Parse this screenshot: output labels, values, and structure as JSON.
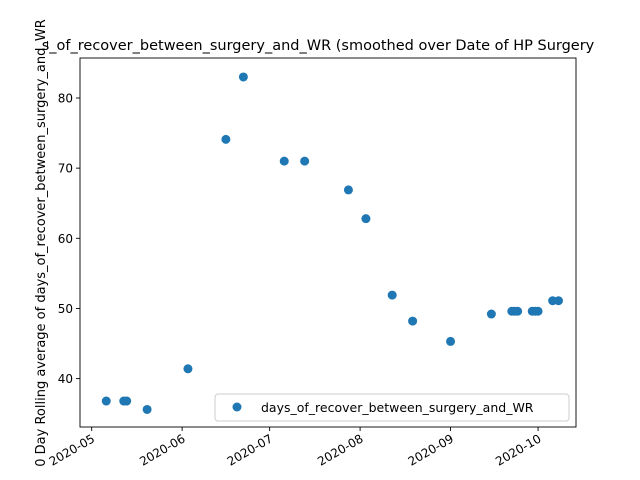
{
  "chart_data": {
    "type": "scatter",
    "title": "s_of_recover_between_surgery_and_WR (smoothed over Date of HP Surgery",
    "xlabel": "",
    "ylabel": "0 Day Rolling average of days_of_recover_between_surgery_and_WR",
    "x_type": "date",
    "xlim": [
      "2020-04-27",
      "2020-10-14"
    ],
    "ylim": [
      33.1,
      85.7
    ],
    "x_ticks": [
      "2020-05",
      "2020-06",
      "2020-07",
      "2020-08",
      "2020-09",
      "2020-10"
    ],
    "y_ticks": [
      40,
      50,
      60,
      70,
      80
    ],
    "grid": false,
    "legend_position": "lower-right",
    "series": [
      {
        "name": "days_of_recover_between_surgery_and_WR",
        "color": "#1f77b4",
        "marker": "circle",
        "points": [
          {
            "x": "2020-05-06",
            "y": 36.8
          },
          {
            "x": "2020-05-12",
            "y": 36.8
          },
          {
            "x": "2020-05-13",
            "y": 36.8
          },
          {
            "x": "2020-05-20",
            "y": 35.6
          },
          {
            "x": "2020-06-03",
            "y": 41.4
          },
          {
            "x": "2020-06-16",
            "y": 74.1
          },
          {
            "x": "2020-06-22",
            "y": 83.0
          },
          {
            "x": "2020-07-06",
            "y": 71.0
          },
          {
            "x": "2020-07-13",
            "y": 71.0
          },
          {
            "x": "2020-07-28",
            "y": 66.9
          },
          {
            "x": "2020-08-03",
            "y": 62.8
          },
          {
            "x": "2020-08-12",
            "y": 51.9
          },
          {
            "x": "2020-08-19",
            "y": 48.2
          },
          {
            "x": "2020-09-01",
            "y": 45.3
          },
          {
            "x": "2020-09-15",
            "y": 49.2
          },
          {
            "x": "2020-09-22",
            "y": 49.6
          },
          {
            "x": "2020-09-23",
            "y": 49.6
          },
          {
            "x": "2020-09-24",
            "y": 49.6
          },
          {
            "x": "2020-09-29",
            "y": 49.6
          },
          {
            "x": "2020-09-30",
            "y": 49.6
          },
          {
            "x": "2020-10-01",
            "y": 49.6
          },
          {
            "x": "2020-10-06",
            "y": 51.1
          },
          {
            "x": "2020-10-08",
            "y": 51.1
          }
        ]
      }
    ]
  }
}
